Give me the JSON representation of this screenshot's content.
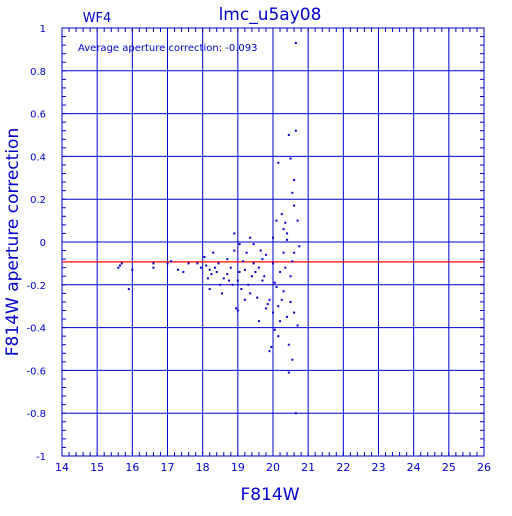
{
  "chart_data": {
    "type": "scatter",
    "title": "lmc_u5ay08",
    "subtitle": "WF4",
    "annotation": "Average aperture correction: -0.093",
    "xlabel": "F814W",
    "ylabel": "F814W aperture correction",
    "xlim": [
      14,
      26
    ],
    "ylim": [
      -1,
      1
    ],
    "xticks": [
      "14",
      "15",
      "16",
      "17",
      "18",
      "19",
      "20",
      "21",
      "22",
      "23",
      "24",
      "25",
      "26"
    ],
    "yticks": [
      "-1",
      "-0.8",
      "-0.6",
      "-0.4",
      "-0.2",
      "0",
      "0.2",
      "0.4",
      "0.6",
      "0.8",
      "1"
    ],
    "grid": true,
    "reference_line": {
      "y": -0.093,
      "color": "#ff0000"
    },
    "colors": {
      "axis": "#0000cc",
      "points": "#0000cc",
      "reference": "#ff0000"
    },
    "series": [
      {
        "points": [
          [
            15.6,
            -0.12
          ],
          [
            15.65,
            -0.11
          ],
          [
            15.7,
            -0.1
          ],
          [
            15.9,
            -0.22
          ],
          [
            16.0,
            -0.13
          ],
          [
            16.6,
            -0.12
          ],
          [
            16.6,
            -0.1
          ],
          [
            17.0,
            -0.1
          ],
          [
            17.1,
            -0.09
          ],
          [
            17.3,
            -0.13
          ],
          [
            17.45,
            -0.14
          ],
          [
            17.6,
            -0.1
          ],
          [
            17.85,
            -0.1
          ],
          [
            17.95,
            -0.12
          ],
          [
            18.05,
            -0.07
          ],
          [
            18.1,
            -0.11
          ],
          [
            18.15,
            -0.17
          ],
          [
            18.2,
            -0.13
          ],
          [
            18.2,
            -0.22
          ],
          [
            18.25,
            -0.15
          ],
          [
            18.3,
            -0.05
          ],
          [
            18.35,
            -0.12
          ],
          [
            18.4,
            -0.14
          ],
          [
            18.45,
            -0.1
          ],
          [
            18.5,
            -0.2
          ],
          [
            18.55,
            -0.24
          ],
          [
            18.6,
            -0.17
          ],
          [
            18.7,
            -0.08
          ],
          [
            18.7,
            -0.15
          ],
          [
            18.75,
            -0.18
          ],
          [
            18.8,
            -0.12
          ],
          [
            18.85,
            -0.2
          ],
          [
            18.9,
            -0.04
          ],
          [
            18.9,
            0.04
          ],
          [
            18.95,
            -0.31
          ],
          [
            19.0,
            -0.18
          ],
          [
            19.0,
            -0.32
          ],
          [
            19.05,
            -0.01
          ],
          [
            19.05,
            -0.14
          ],
          [
            19.1,
            -0.22
          ],
          [
            19.15,
            -0.09
          ],
          [
            19.2,
            -0.13
          ],
          [
            19.25,
            -0.05
          ],
          [
            19.3,
            -0.2
          ],
          [
            19.35,
            -0.24
          ],
          [
            19.35,
            0.02
          ],
          [
            19.4,
            -0.16
          ],
          [
            19.45,
            -0.1
          ],
          [
            19.5,
            -0.14
          ],
          [
            19.55,
            -0.26
          ],
          [
            19.6,
            -0.12
          ],
          [
            19.6,
            -0.37
          ],
          [
            19.65,
            -0.04
          ],
          [
            19.7,
            -0.18
          ],
          [
            19.7,
            -0.08
          ],
          [
            19.75,
            -0.16
          ],
          [
            19.8,
            -0.31
          ],
          [
            19.85,
            -0.29
          ],
          [
            19.9,
            -0.27
          ],
          [
            19.9,
            -0.51
          ],
          [
            19.95,
            -0.49
          ],
          [
            20.0,
            0.02
          ],
          [
            20.0,
            -0.1
          ],
          [
            20.05,
            -0.41
          ],
          [
            20.05,
            -0.19
          ],
          [
            20.1,
            0.1
          ],
          [
            20.1,
            -0.21
          ],
          [
            20.15,
            0.37
          ],
          [
            20.15,
            -0.3
          ],
          [
            20.2,
            -0.14
          ],
          [
            20.2,
            -0.37
          ],
          [
            20.25,
            0.13
          ],
          [
            20.3,
            -0.23
          ],
          [
            20.3,
            -0.05
          ],
          [
            20.35,
            0.09
          ],
          [
            20.4,
            0.01
          ],
          [
            20.4,
            -0.35
          ],
          [
            20.45,
            -0.48
          ],
          [
            20.45,
            -0.61
          ],
          [
            20.45,
            0.5
          ],
          [
            20.5,
            0.39
          ],
          [
            20.5,
            -0.16
          ],
          [
            20.55,
            0.23
          ],
          [
            20.55,
            -0.09
          ],
          [
            20.6,
            0.29
          ],
          [
            20.6,
            -0.05
          ],
          [
            20.6,
            -0.33
          ],
          [
            20.65,
            0.52
          ],
          [
            20.65,
            0.93
          ],
          [
            20.65,
            -0.8
          ],
          [
            20.7,
            0.1
          ],
          [
            20.75,
            -0.02
          ],
          [
            20.25,
            -0.27
          ],
          [
            20.35,
            -0.12
          ],
          [
            20.55,
            -0.55
          ],
          [
            19.8,
            -0.06
          ],
          [
            20.15,
            -0.44
          ],
          [
            19.45,
            -0.01
          ],
          [
            20.0,
            -0.33
          ],
          [
            20.5,
            -0.28
          ],
          [
            20.7,
            -0.39
          ],
          [
            20.4,
            0.04
          ],
          [
            20.3,
            0.06
          ],
          [
            20.6,
            0.17
          ],
          [
            19.2,
            -0.27
          ]
        ]
      }
    ]
  }
}
